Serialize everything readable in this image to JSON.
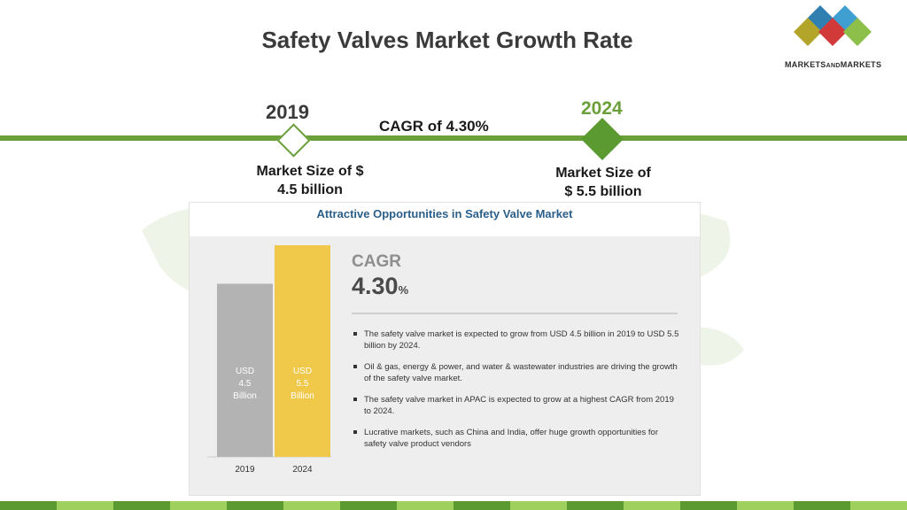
{
  "title": "Safety Valves Market Growth Rate",
  "logo": {
    "text_main": "MARKETS",
    "text_and": "AND",
    "text_end": "MARKETS"
  },
  "timeline": {
    "start_year": "2019",
    "end_year": "2024",
    "cagr_text": "CAGR of 4.30%",
    "start_size_line1": "Market Size of $",
    "start_size_line2": "4.5 billion",
    "end_size_line1": "Market Size of",
    "end_size_line2": "$ 5.5 billion"
  },
  "panel": {
    "title": "Attractive Opportunities in Safety Valve Market",
    "cagr_label": "CAGR",
    "cagr_value": "4.30",
    "cagr_unit": "%",
    "bullets": [
      "The safety valve market is expected to grow from USD 4.5 billion in 2019 to USD 5.5 billion by 2024.",
      "Oil & gas, energy & power, and water & wastewater industries are driving the growth of the safety valve market.",
      "The safety valve market in APAC is expected to grow at a highest CAGR from 2019 to 2024.",
      "Lucrative markets, such as China and India, offer huge growth opportunities for safety valve product vendors"
    ]
  },
  "colors": {
    "accent_green": "#6b9f3a",
    "bar_2019": "#b3b3b3",
    "bar_2024": "#f0c84a",
    "panel_title": "#2b5f8a"
  },
  "chart_data": {
    "type": "bar",
    "categories": [
      "2019",
      "2024"
    ],
    "values": [
      4.5,
      5.5
    ],
    "bar_labels": [
      [
        "USD",
        "4.5",
        "Billion"
      ],
      [
        "USD",
        "5.5",
        "Billion"
      ]
    ],
    "title": "",
    "xlabel": "",
    "ylabel": "",
    "ylim": [
      0,
      5.5
    ]
  }
}
